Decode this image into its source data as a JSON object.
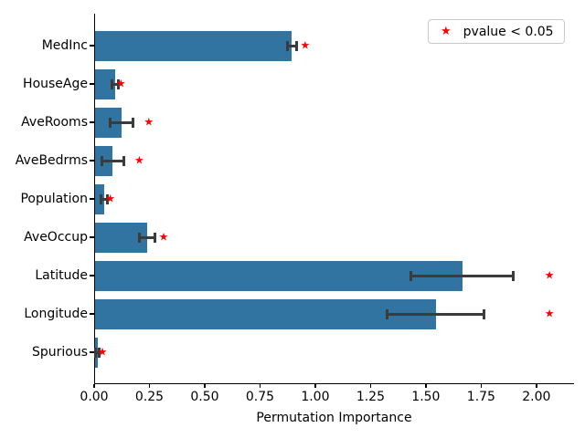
{
  "figure": {
    "background": "#ffffff"
  },
  "chart_data": {
    "type": "bar",
    "orientation": "horizontal",
    "title": "",
    "xlabel": "Permutation Importance",
    "ylabel": "",
    "categories": [
      "MedInc",
      "HouseAge",
      "AveRooms",
      "AveBedrms",
      "Population",
      "AveOccup",
      "Latitude",
      "Longitude",
      "Spurious"
    ],
    "values": [
      0.89,
      0.09,
      0.12,
      0.08,
      0.04,
      0.235,
      1.66,
      1.54,
      0.012
    ],
    "errors": [
      0.02,
      0.014,
      0.05,
      0.051,
      0.015,
      0.036,
      0.233,
      0.22,
      0.008
    ],
    "significance_marker_x": [
      0.95,
      0.117,
      0.243,
      0.2,
      0.069,
      0.31,
      2.055,
      2.055,
      0.033
    ],
    "significant": [
      true,
      true,
      true,
      true,
      true,
      true,
      true,
      true,
      true
    ],
    "xticks": [
      0,
      0.25,
      0.5,
      0.75,
      1.0,
      1.25,
      1.5,
      1.75,
      2.0
    ],
    "xtick_labels": [
      "0.00",
      "0.25",
      "0.50",
      "0.75",
      "1.00",
      "1.25",
      "1.50",
      "1.75",
      "2.00"
    ],
    "xlim": [
      0,
      2.17
    ],
    "grid": false,
    "legend_position": "upper right",
    "bar_color": "#3274a1",
    "error_color": "#3b3b3b",
    "marker_color": "#ff0000",
    "legend": {
      "label": "pvalue < 0.05",
      "marker_icon": "star-icon",
      "glyph": "★"
    }
  }
}
